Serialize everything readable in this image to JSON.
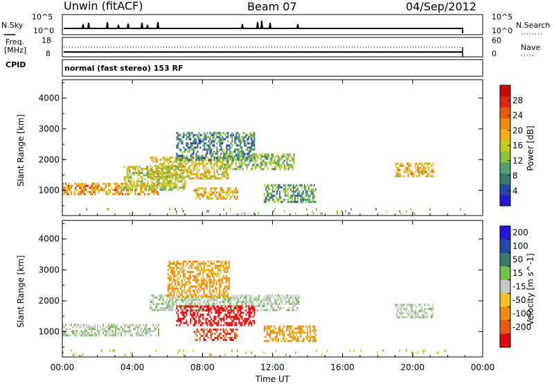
{
  "header": {
    "title": "Unwin (fitACF)",
    "beam": "Beam 07",
    "date": "04/Sep/2012"
  },
  "panels": {
    "nsky": {
      "label": "N.Sky",
      "ticks": [
        "10^5",
        "10^0"
      ],
      "right_label": "N.Search",
      "right_ticks": [
        "10^5",
        "10^0"
      ]
    },
    "freq": {
      "label_line1": "Freq.",
      "label_line2": "[MHz]",
      "ticks": [
        "18",
        "8"
      ],
      "right_label": "Nave",
      "right_ticks": [
        "60",
        "0"
      ]
    },
    "cpid": {
      "label": "CPID",
      "text": "normal (fast stereo) 153 RF"
    }
  },
  "chart_data": [
    {
      "type": "heatmap",
      "title": "",
      "xlabel": "Time UT",
      "ylabel": "Slant Range [km]",
      "xticks": [
        "00:00",
        "04:00",
        "08:00",
        "12:00",
        "16:00",
        "20:00",
        "00:00"
      ],
      "yticks": [
        "1000",
        "2000",
        "3000",
        "4000"
      ],
      "colorbar": {
        "label": "Power [dB]",
        "ticks": [
          "4",
          "8",
          "12",
          "16",
          "20",
          "24",
          "28"
        ],
        "colors": [
          "#1f18e0",
          "#2448a8",
          "#3c7a6e",
          "#4fa36a",
          "#8cc43a",
          "#c8cc1e",
          "#f0b010",
          "#f08a10",
          "#e85a0e",
          "#e02a10",
          "#cc0a0a"
        ]
      },
      "regions": [
        {
          "t": [
            0.0,
            5.5
          ],
          "r": [
            850,
            1250
          ],
          "v": 20
        },
        {
          "t": [
            3.5,
            7.0
          ],
          "r": [
            1000,
            1800
          ],
          "v": 14
        },
        {
          "t": [
            5.0,
            9.5
          ],
          "r": [
            1400,
            2100
          ],
          "v": 16
        },
        {
          "t": [
            6.5,
            11.0
          ],
          "r": [
            2000,
            2900
          ],
          "v": 8
        },
        {
          "t": [
            9.0,
            13.2
          ],
          "r": [
            1700,
            2200
          ],
          "v": 12
        },
        {
          "t": [
            7.5,
            10.0
          ],
          "r": [
            700,
            1100
          ],
          "v": 18
        },
        {
          "t": [
            11.5,
            14.5
          ],
          "r": [
            650,
            1200
          ],
          "v": 10
        },
        {
          "t": [
            19.0,
            21.2
          ],
          "r": [
            1450,
            1900
          ],
          "v": 18
        },
        {
          "t": [
            0.0,
            22.8
          ],
          "r": [
            220,
            420
          ],
          "v": 12
        }
      ]
    },
    {
      "type": "heatmap",
      "title": "",
      "xlabel": "Time UT",
      "ylabel": "Slant Range [km]",
      "xticks": [
        "00:00",
        "04:00",
        "08:00",
        "12:00",
        "16:00",
        "20:00",
        "00:00"
      ],
      "yticks": [
        "1000",
        "2000",
        "3000",
        "4000"
      ],
      "colorbar": {
        "label": "Velocity [m s^-1]",
        "ticks": [
          "200",
          "100",
          "50",
          "15",
          "-15",
          "-50",
          "-100",
          "-200"
        ],
        "colors": [
          "#1f18e0",
          "#2448a8",
          "#3c7a6e",
          "#6fc24a",
          "#c8c8c8",
          "#f0c020",
          "#f08a10",
          "#e85a0e",
          "#e00a0a"
        ]
      },
      "regions": [
        {
          "t": [
            0.0,
            5.5
          ],
          "r": [
            850,
            1250
          ],
          "v": 0
        },
        {
          "t": [
            5.0,
            13.5
          ],
          "r": [
            1700,
            2200
          ],
          "v": 0
        },
        {
          "t": [
            6.5,
            11.0
          ],
          "r": [
            1200,
            1850
          ],
          "v": -200
        },
        {
          "t": [
            7.5,
            10.0
          ],
          "r": [
            700,
            1100
          ],
          "v": -150
        },
        {
          "t": [
            6.0,
            9.5
          ],
          "r": [
            2100,
            3300
          ],
          "v": -40
        },
        {
          "t": [
            11.5,
            14.5
          ],
          "r": [
            700,
            1200
          ],
          "v": -40
        },
        {
          "t": [
            19.0,
            21.2
          ],
          "r": [
            1450,
            1900
          ],
          "v": 0
        },
        {
          "t": [
            0.0,
            22.8
          ],
          "r": [
            220,
            420
          ],
          "v": -30
        }
      ]
    }
  ]
}
